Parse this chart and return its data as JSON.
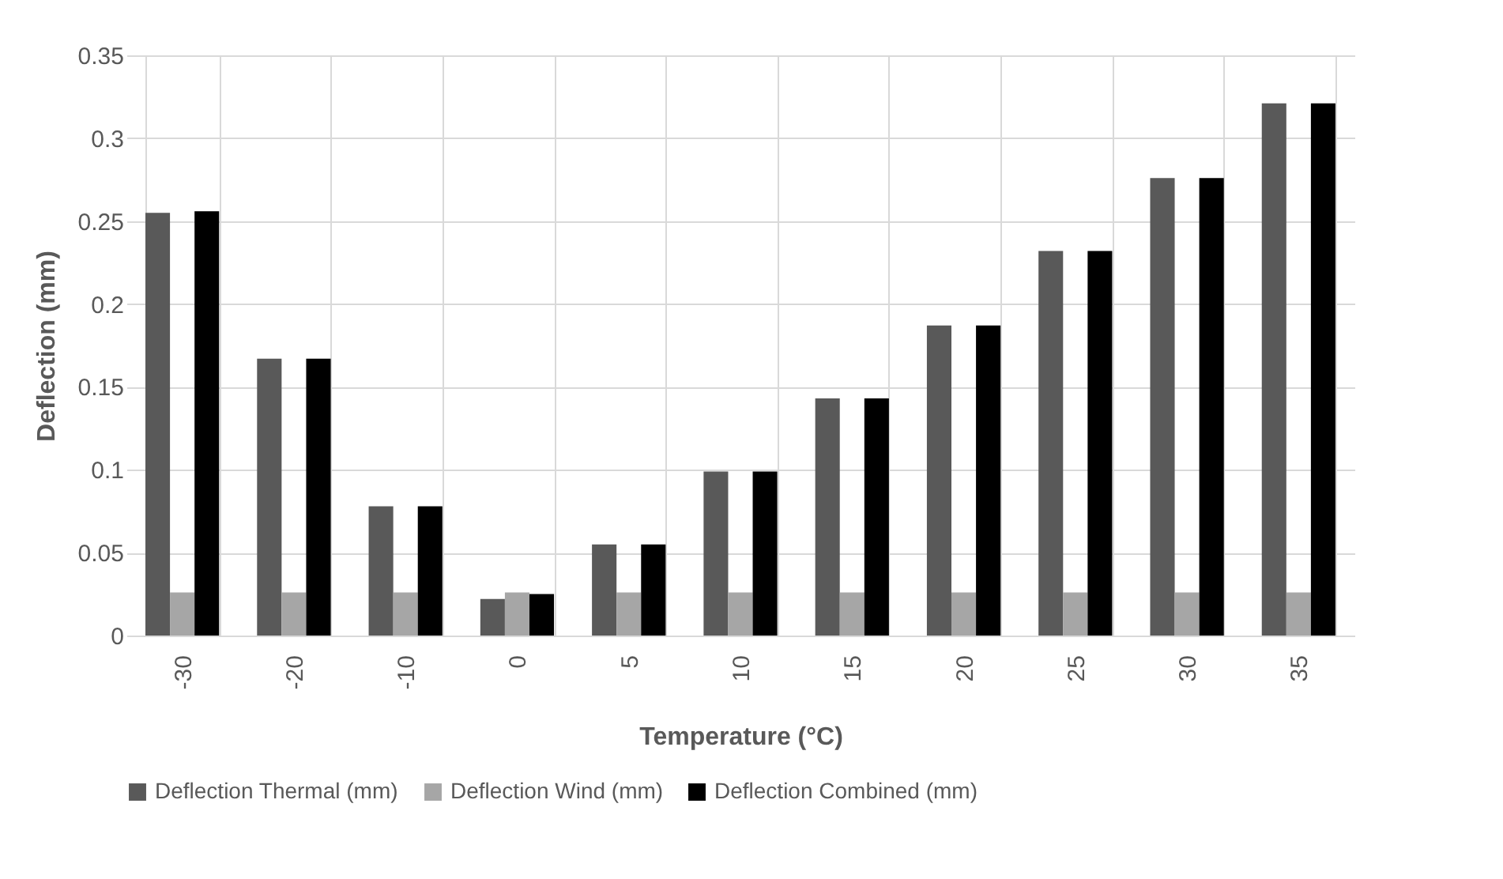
{
  "chart_data": {
    "type": "bar",
    "xlabel": "Temperature (°C)",
    "ylabel": "Deflection (mm)",
    "categories": [
      "-30",
      "-20",
      "-10",
      "0",
      "5",
      "10",
      "15",
      "20",
      "25",
      "30",
      "35"
    ],
    "series": [
      {
        "name": "Deflection Thermal (mm)",
        "color": "#595959",
        "values": [
          0.255,
          0.167,
          0.078,
          0.022,
          0.055,
          0.099,
          0.143,
          0.187,
          0.232,
          0.276,
          0.321
        ]
      },
      {
        "name": "Deflection Wind (mm)",
        "color": "#a6a6a6",
        "values": [
          0.026,
          0.026,
          0.026,
          0.026,
          0.026,
          0.026,
          0.026,
          0.026,
          0.026,
          0.026,
          0.026
        ]
      },
      {
        "name": "Deflection  Combined (mm)",
        "color": "#000000",
        "values": [
          0.256,
          0.167,
          0.078,
          0.025,
          0.055,
          0.099,
          0.143,
          0.187,
          0.232,
          0.276,
          0.321
        ]
      }
    ],
    "ylim": [
      0,
      0.35
    ],
    "yticks": [
      0,
      0.05,
      0.1,
      0.15,
      0.2,
      0.25,
      0.3,
      0.35
    ],
    "grid": true,
    "legend": "bottom"
  }
}
